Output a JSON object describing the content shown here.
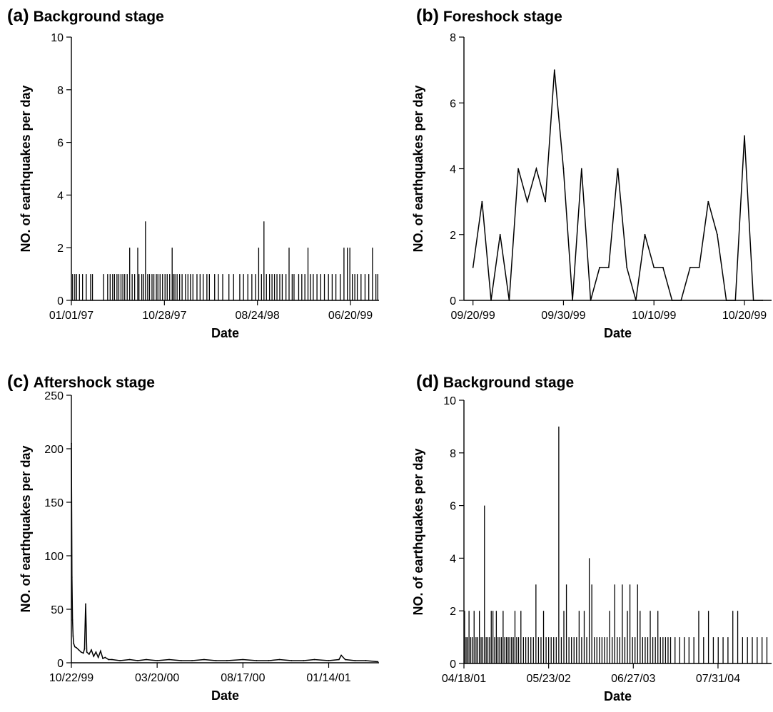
{
  "chart_data": [
    {
      "panel": "(a)",
      "type": "bar",
      "title": "Background stage",
      "xlabel": "Date",
      "ylabel": "NO. of earthquakes per day",
      "ylim": [
        0,
        10
      ],
      "yticks": [
        0,
        2,
        4,
        6,
        8,
        10
      ],
      "xlim": [
        "1997-01-01",
        "1999-09-20"
      ],
      "xticks": [
        "1997-01-01",
        "1997-10-28",
        "1998-08-24",
        "1999-06-20"
      ],
      "xtick_labels": [
        "01/01/97",
        "10/28/97",
        "08/24/98",
        "06/20/99"
      ],
      "grid": false,
      "x": [
        "1997-01-05",
        "1997-01-12",
        "1997-01-18",
        "1997-01-27",
        "1997-02-06",
        "1997-02-18",
        "1997-03-04",
        "1997-03-10",
        "1997-04-15",
        "1997-04-28",
        "1997-05-06",
        "1997-05-14",
        "1997-05-20",
        "1997-05-28",
        "1997-06-03",
        "1997-06-10",
        "1997-06-16",
        "1997-06-22",
        "1997-06-30",
        "1997-07-08",
        "1997-07-16",
        "1997-07-24",
        "1997-08-03",
        "1997-08-07",
        "1997-08-16",
        "1997-08-22",
        "1997-08-28",
        "1997-09-04",
        "1997-09-10",
        "1997-09-18",
        "1997-09-24",
        "1997-10-02",
        "1997-10-07",
        "1997-10-14",
        "1997-10-22",
        "1997-10-30",
        "1997-11-06",
        "1997-11-14",
        "1997-11-22",
        "1997-11-26",
        "1997-12-01",
        "1997-12-08",
        "1997-12-16",
        "1997-12-24",
        "1998-01-04",
        "1998-01-12",
        "1998-01-20",
        "1998-01-28",
        "1998-02-10",
        "1998-02-20",
        "1998-03-02",
        "1998-03-14",
        "1998-03-22",
        "1998-04-08",
        "1998-04-20",
        "1998-05-04",
        "1998-05-24",
        "1998-06-08",
        "1998-06-28",
        "1998-07-10",
        "1998-07-24",
        "1998-08-06",
        "1998-08-18",
        "1998-08-28",
        "1998-09-06",
        "1998-09-14",
        "1998-09-22",
        "1998-10-02",
        "1998-10-10",
        "1998-10-18",
        "1998-10-26",
        "1998-11-04",
        "1998-11-12",
        "1998-11-24",
        "1998-12-04",
        "1998-12-14",
        "1998-12-20",
        "1999-01-04",
        "1999-01-14",
        "1999-01-24",
        "1999-02-03",
        "1999-02-11",
        "1999-02-20",
        "1999-03-04",
        "1999-03-16",
        "1999-03-28",
        "1999-04-10",
        "1999-04-22",
        "1999-05-04",
        "1999-05-18",
        "1999-05-30",
        "1999-06-10",
        "1999-06-18",
        "1999-06-26",
        "1999-07-04",
        "1999-07-12",
        "1999-07-24",
        "1999-08-06",
        "1999-08-18",
        "1999-08-30",
        "1999-09-10",
        "1999-09-16"
      ],
      "values": [
        1,
        1,
        1,
        1,
        1,
        1,
        1,
        1,
        1,
        1,
        1,
        1,
        1,
        1,
        1,
        1,
        1,
        1,
        1,
        2,
        1,
        1,
        2,
        1,
        1,
        1,
        3,
        1,
        1,
        1,
        1,
        1,
        1,
        1,
        1,
        1,
        1,
        1,
        2,
        1,
        1,
        1,
        1,
        1,
        1,
        1,
        1,
        1,
        1,
        1,
        1,
        1,
        1,
        1,
        1,
        1,
        1,
        1,
        1,
        1,
        1,
        1,
        1,
        2,
        1,
        3,
        1,
        1,
        1,
        1,
        1,
        1,
        1,
        1,
        2,
        1,
        1,
        1,
        1,
        1,
        2,
        1,
        1,
        1,
        1,
        1,
        1,
        1,
        1,
        1,
        2,
        2,
        2,
        1,
        1,
        1,
        1,
        1,
        1,
        2,
        1,
        1
      ]
    },
    {
      "panel": "(b)",
      "type": "line",
      "title": "Foreshock stage",
      "xlabel": "Date",
      "ylabel": "NO. of earthquakes per day",
      "ylim": [
        0,
        8
      ],
      "yticks": [
        0,
        2,
        4,
        6,
        8
      ],
      "xlim": [
        "1999-09-19",
        "1999-10-23"
      ],
      "xticks": [
        "1999-09-20",
        "1999-09-30",
        "1999-10-10",
        "1999-10-20"
      ],
      "xtick_labels": [
        "09/20/99",
        "09/30/99",
        "10/10/99",
        "10/20/99"
      ],
      "grid": false,
      "x": [
        "1999-09-20",
        "1999-09-21",
        "1999-09-22",
        "1999-09-23",
        "1999-09-24",
        "1999-09-25",
        "1999-09-26",
        "1999-09-27",
        "1999-09-28",
        "1999-09-29",
        "1999-09-30",
        "1999-10-01",
        "1999-10-02",
        "1999-10-03",
        "1999-10-04",
        "1999-10-05",
        "1999-10-06",
        "1999-10-07",
        "1999-10-08",
        "1999-10-09",
        "1999-10-10",
        "1999-10-11",
        "1999-10-12",
        "1999-10-13",
        "1999-10-14",
        "1999-10-15",
        "1999-10-16",
        "1999-10-17",
        "1999-10-18",
        "1999-10-19",
        "1999-10-20",
        "1999-10-21",
        "1999-10-22"
      ],
      "values": [
        1,
        3,
        0,
        2,
        0,
        4,
        3,
        4,
        3,
        7,
        4,
        0,
        4,
        0,
        1,
        1,
        4,
        1,
        0,
        2,
        1,
        1,
        0,
        0,
        1,
        1,
        3,
        2,
        0,
        0,
        5,
        0,
        0
      ]
    },
    {
      "panel": "(c)",
      "type": "line",
      "title": "Aftershock stage",
      "xlabel": "Date",
      "ylabel": "NO. of earthquakes per day",
      "ylim": [
        0,
        250
      ],
      "yticks": [
        0,
        50,
        100,
        150,
        200,
        250
      ],
      "xlim": [
        "1999-10-22",
        "2001-04-12"
      ],
      "xticks": [
        "1999-10-22",
        "2000-03-20",
        "2000-08-17",
        "2001-01-14"
      ],
      "xtick_labels": [
        "10/22/99",
        "03/20/00",
        "08/17/00",
        "01/14/01"
      ],
      "grid": false,
      "x": [
        "1999-10-22",
        "1999-10-23",
        "1999-10-24",
        "1999-10-25",
        "1999-10-26",
        "1999-10-28",
        "1999-10-31",
        "1999-11-04",
        "1999-11-08",
        "1999-11-12",
        "1999-11-14",
        "1999-11-16",
        "1999-11-18",
        "1999-11-22",
        "1999-11-26",
        "1999-11-30",
        "1999-12-04",
        "1999-12-08",
        "1999-12-12",
        "1999-12-16",
        "1999-12-20",
        "1999-12-26",
        "2000-01-01",
        "2000-01-15",
        "2000-02-01",
        "2000-02-15",
        "2000-03-01",
        "2000-03-20",
        "2000-04-10",
        "2000-05-01",
        "2000-05-20",
        "2000-06-10",
        "2000-07-01",
        "2000-07-20",
        "2000-08-17",
        "2000-09-10",
        "2000-10-01",
        "2000-10-20",
        "2000-11-10",
        "2000-12-01",
        "2000-12-20",
        "2001-01-14",
        "2001-02-01",
        "2001-02-05",
        "2001-02-12",
        "2001-03-01",
        "2001-03-20",
        "2001-04-10"
      ],
      "values": [
        205,
        80,
        40,
        25,
        18,
        15,
        14,
        12,
        10,
        9,
        13,
        55,
        10,
        8,
        12,
        6,
        10,
        5,
        11,
        4,
        5,
        3,
        3,
        2,
        3,
        2,
        3,
        2,
        3,
        2,
        2,
        3,
        2,
        2,
        3,
        2,
        2,
        3,
        2,
        2,
        3,
        2,
        3,
        7,
        3,
        2,
        2,
        1
      ]
    },
    {
      "panel": "(d)",
      "type": "bar",
      "title": "Background stage",
      "xlabel": "Date",
      "ylabel": "NO. of earthquakes per day",
      "ylim": [
        0,
        10
      ],
      "yticks": [
        0,
        2,
        4,
        6,
        8,
        10
      ],
      "xlim": [
        "2001-04-18",
        "2005-04-10"
      ],
      "xticks": [
        "2001-04-18",
        "2002-05-23",
        "2003-06-27",
        "2004-07-31"
      ],
      "xtick_labels": [
        "04/18/01",
        "05/23/02",
        "06/27/03",
        "07/31/04"
      ],
      "grid": false,
      "x": [
        "2001-04-21",
        "2001-04-28",
        "2001-05-04",
        "2001-05-12",
        "2001-05-20",
        "2001-05-28",
        "2001-06-05",
        "2001-06-14",
        "2001-06-22",
        "2001-06-30",
        "2001-07-08",
        "2001-07-16",
        "2001-07-24",
        "2001-08-01",
        "2001-08-09",
        "2001-08-17",
        "2001-08-25",
        "2001-09-02",
        "2001-09-10",
        "2001-09-18",
        "2001-09-26",
        "2001-10-04",
        "2001-10-12",
        "2001-10-20",
        "2001-10-28",
        "2001-11-05",
        "2001-11-13",
        "2001-11-21",
        "2001-11-29",
        "2001-12-07",
        "2001-12-15",
        "2001-12-23",
        "2002-01-01",
        "2002-01-12",
        "2002-01-24",
        "2002-02-04",
        "2002-02-16",
        "2002-02-28",
        "2002-03-12",
        "2002-03-24",
        "2002-04-05",
        "2002-04-17",
        "2002-04-29",
        "2002-05-11",
        "2002-05-23",
        "2002-06-04",
        "2002-06-16",
        "2002-06-28",
        "2002-07-10",
        "2002-07-22",
        "2002-08-03",
        "2002-08-15",
        "2002-08-27",
        "2002-09-08",
        "2002-09-20",
        "2002-10-02",
        "2002-10-14",
        "2002-10-26",
        "2002-11-07",
        "2002-11-19",
        "2002-12-01",
        "2002-12-13",
        "2002-12-25",
        "2003-01-06",
        "2003-01-18",
        "2003-01-30",
        "2003-02-11",
        "2003-02-23",
        "2003-03-07",
        "2003-03-19",
        "2003-03-31",
        "2003-04-12",
        "2003-04-24",
        "2003-05-06",
        "2003-05-18",
        "2003-05-30",
        "2003-06-11",
        "2003-06-23",
        "2003-07-05",
        "2003-07-17",
        "2003-07-29",
        "2003-08-10",
        "2003-08-22",
        "2003-09-03",
        "2003-09-15",
        "2003-09-27",
        "2003-10-09",
        "2003-10-21",
        "2003-11-02",
        "2003-11-14",
        "2003-11-26",
        "2003-12-08",
        "2003-12-20",
        "2004-01-10",
        "2004-02-01",
        "2004-02-23",
        "2004-03-16",
        "2004-04-08",
        "2004-05-01",
        "2004-05-24",
        "2004-06-16",
        "2004-07-09",
        "2004-08-01",
        "2004-08-24",
        "2004-09-16",
        "2004-10-09",
        "2004-11-01",
        "2004-11-24",
        "2004-12-17",
        "2005-01-09",
        "2005-02-01",
        "2005-02-24",
        "2005-03-19"
      ],
      "values": [
        2,
        1,
        1,
        2,
        1,
        1,
        2,
        1,
        1,
        2,
        1,
        1,
        6,
        1,
        1,
        1,
        2,
        2,
        1,
        2,
        1,
        1,
        1,
        2,
        1,
        1,
        1,
        1,
        1,
        1,
        2,
        1,
        1,
        2,
        1,
        1,
        1,
        1,
        1,
        3,
        1,
        1,
        2,
        1,
        1,
        1,
        1,
        1,
        9,
        1,
        2,
        3,
        1,
        1,
        1,
        1,
        2,
        1,
        2,
        1,
        4,
        3,
        1,
        1,
        1,
        1,
        1,
        1,
        2,
        1,
        3,
        1,
        1,
        3,
        1,
        2,
        3,
        1,
        1,
        3,
        2,
        1,
        1,
        1,
        2,
        1,
        1,
        2,
        1,
        1,
        1,
        1,
        1,
        1,
        1,
        1,
        1,
        1,
        2,
        1,
        2,
        1,
        1,
        1,
        1,
        2,
        2,
        1,
        1,
        1,
        1,
        1,
        1
      ]
    }
  ]
}
